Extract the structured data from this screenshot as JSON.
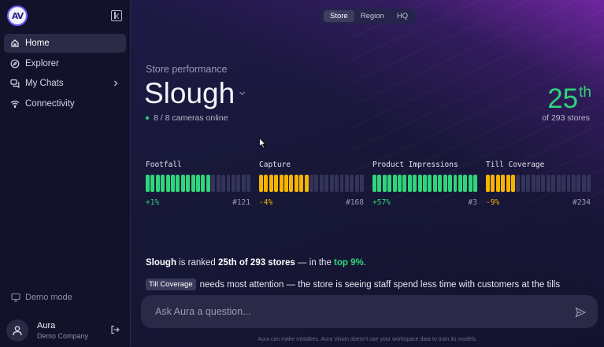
{
  "sidebar": {
    "logo_text": "AV",
    "items": [
      {
        "label": "Home",
        "icon": "home-icon",
        "active": true
      },
      {
        "label": "Explorer",
        "icon": "compass-icon",
        "active": false
      },
      {
        "label": "My Chats",
        "icon": "chats-icon",
        "active": false,
        "has_chevron": true
      },
      {
        "label": "Connectivity",
        "icon": "wifi-icon",
        "active": false
      }
    ],
    "demo_mode_label": "Demo mode",
    "user": {
      "name": "Aura",
      "company": "Demo Company"
    }
  },
  "scope_tabs": [
    {
      "label": "Store",
      "active": true
    },
    {
      "label": "Region",
      "active": false
    },
    {
      "label": "HQ",
      "active": false
    }
  ],
  "header": {
    "subtitle": "Store performance",
    "store": "Slough",
    "cameras": "8 / 8 cameras online",
    "rank_number": "25",
    "rank_suffix": "th",
    "rank_of": "of 293 stores"
  },
  "colors": {
    "good": "#2fd57a",
    "warn": "#f5b400",
    "empty": "#34345a"
  },
  "metrics": [
    {
      "label": "Footfall",
      "filled": 13,
      "total": 21,
      "status": "good",
      "change": "+1%",
      "rank": "#121"
    },
    {
      "label": "Capture",
      "filled": 10,
      "total": 21,
      "status": "warn",
      "change": "-4%",
      "rank": "#168"
    },
    {
      "label": "Product Impressions",
      "filled": 21,
      "total": 21,
      "status": "good",
      "change": "+57%",
      "rank": "#3"
    },
    {
      "label": "Till Coverage",
      "filled": 6,
      "total": 21,
      "status": "warn",
      "change": "-9%",
      "rank": "#234"
    }
  ],
  "summary": {
    "store": "Slough",
    "text1": " is ranked ",
    "rank_text": "25th of 293 stores",
    "text2": " — in the ",
    "top": "top 9%",
    "text3": "."
  },
  "attention": {
    "tag": "Till Coverage",
    "text": "needs most attention — the store is seeing staff spend less time with customers at the tills"
  },
  "ask": {
    "placeholder": "Ask Aura a question..."
  },
  "disclaimer": "Aura can make mistakes. Aura Vision doesn't use your workspace data to train its models."
}
